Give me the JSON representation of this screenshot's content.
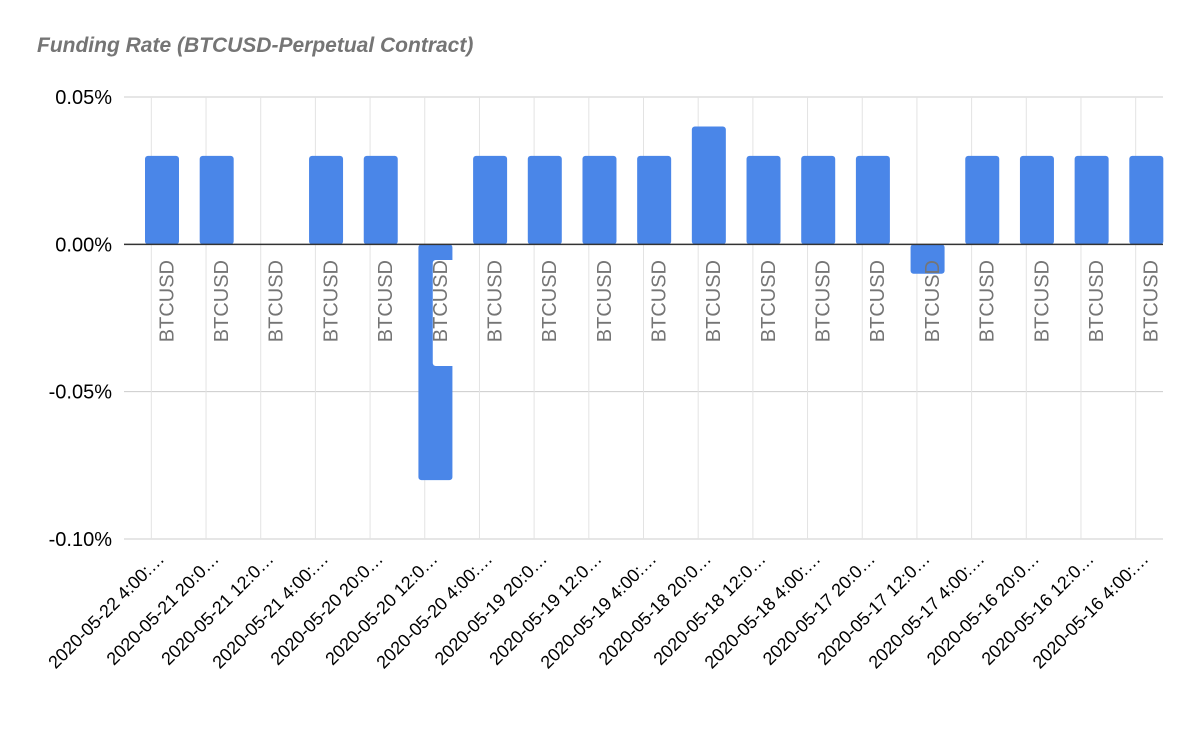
{
  "chart_data": {
    "type": "bar",
    "title": "Funding Rate (BTCUSD-Perpetual Contract)",
    "xlabel": "",
    "ylabel": "",
    "ylim": [
      -0.1,
      0.05
    ],
    "yticks": [
      {
        "value": 0.05,
        "label": "0.05%"
      },
      {
        "value": 0.0,
        "label": "0.00%"
      },
      {
        "value": -0.05,
        "label": "-0.05%"
      },
      {
        "value": -0.1,
        "label": "-0.10%"
      }
    ],
    "grid": true,
    "legend": "none",
    "bar_color": "#4a86e8",
    "categories": [
      "2020-05-22 4:00:…",
      "2020-05-21 20:0…",
      "2020-05-21 12:0…",
      "2020-05-21 4:00:…",
      "2020-05-20 20:0…",
      "2020-05-20 12:0…",
      "2020-05-20 4:00:…",
      "2020-05-19 20:0…",
      "2020-05-19 12:0…",
      "2020-05-19 4:00:…",
      "2020-05-18 20:0…",
      "2020-05-18 12:0…",
      "2020-05-18 4:00:…",
      "2020-05-17 20:0…",
      "2020-05-17 12:0…",
      "2020-05-17 4:00:…",
      "2020-05-16 20:0…",
      "2020-05-16 12:0…",
      "2020-05-16 4:00:…"
    ],
    "series": [
      {
        "values": [
          0.03,
          0.03,
          0.0,
          0.03,
          0.03,
          -0.08,
          0.03,
          0.03,
          0.03,
          0.03,
          0.04,
          0.03,
          0.03,
          0.03,
          -0.01,
          0.03,
          0.03,
          0.03,
          0.03
        ],
        "data_labels": [
          "BTCUSD",
          "BTCUSD",
          "BTCUSD",
          "BTCUSD",
          "BTCUSD",
          "BTCUSD",
          "BTCUSD",
          "BTCUSD",
          "BTCUSD",
          "BTCUSD",
          "BTCUSD",
          "BTCUSD",
          "BTCUSD",
          "BTCUSD",
          "BTCUSD",
          "BTCUSD",
          "BTCUSD",
          "BTCUSD",
          "BTCUSD"
        ]
      }
    ]
  }
}
